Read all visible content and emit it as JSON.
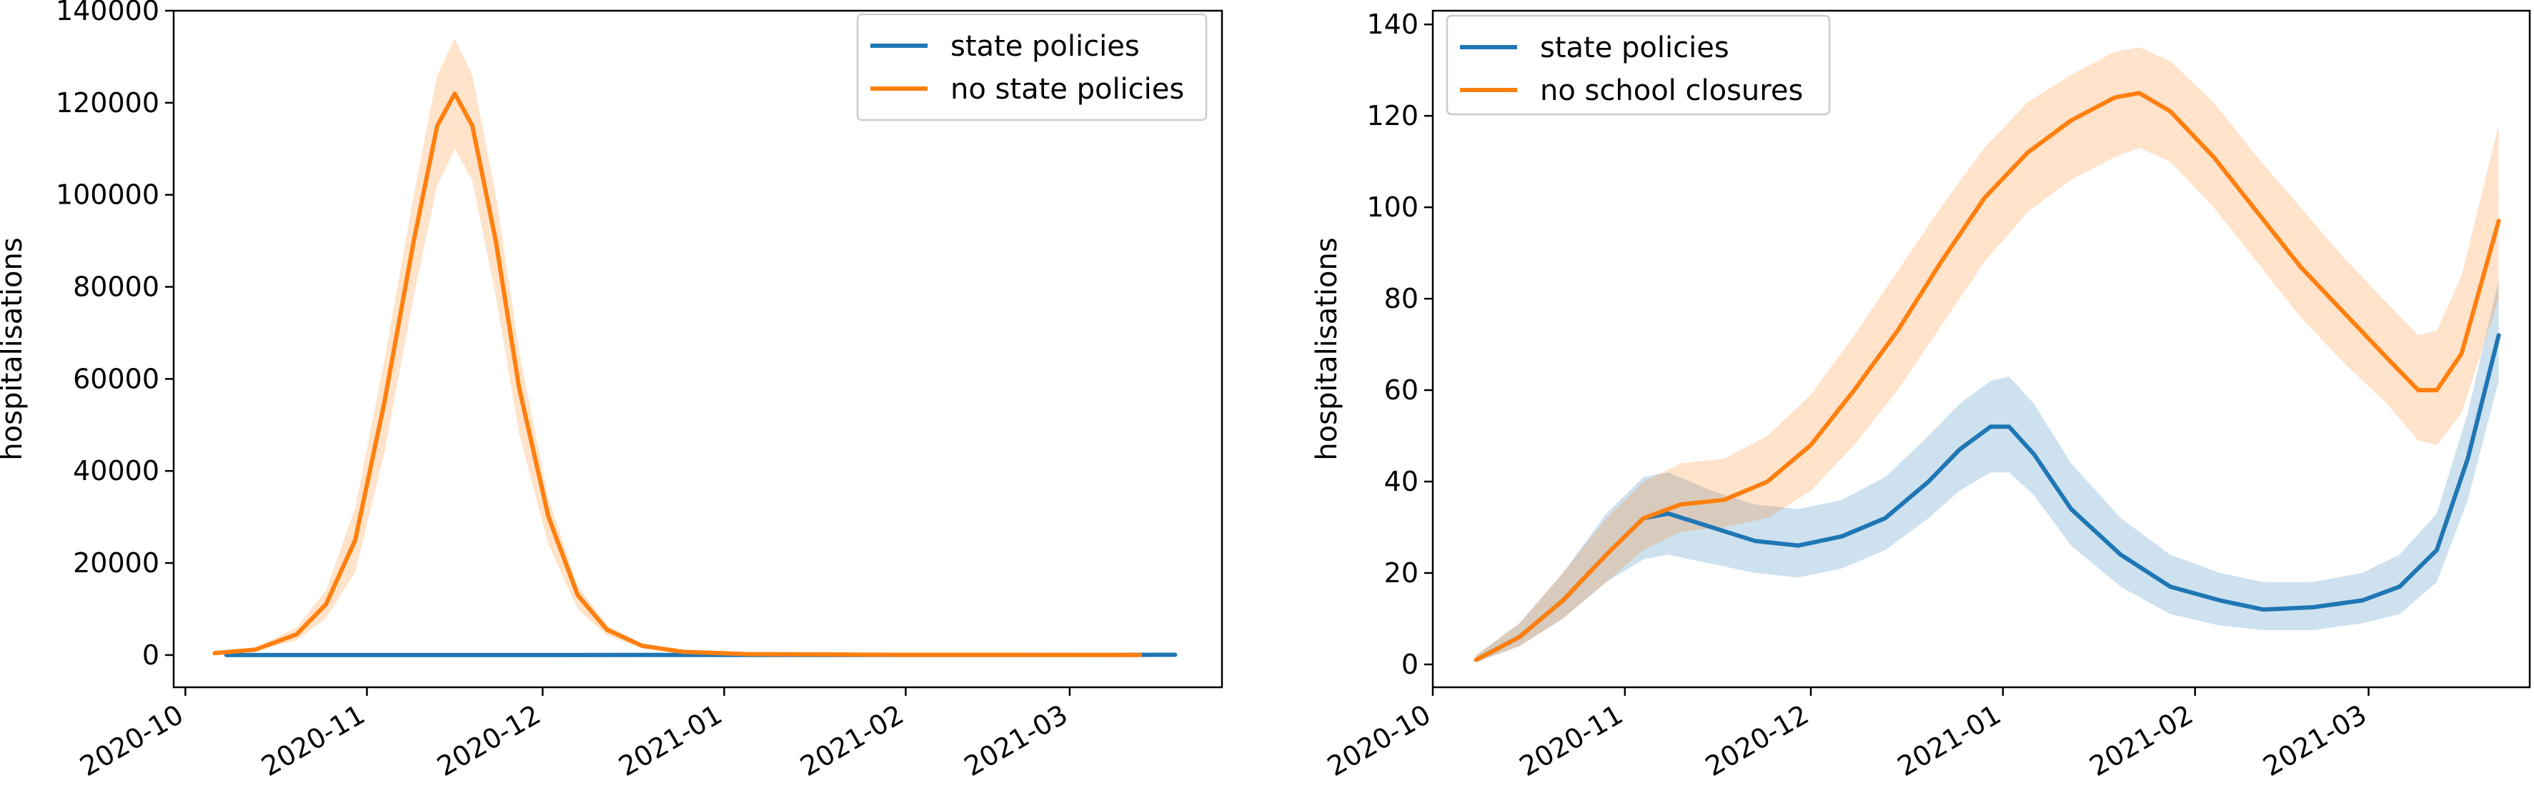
{
  "colors": {
    "blue": "#1f77b4",
    "orange": "#ff7f0e",
    "blue_band": "#aac9e4",
    "orange_band": "#ffd9b8"
  },
  "chart_data": [
    {
      "type": "line",
      "title": "",
      "xlabel": "",
      "ylabel": "hospitalisations",
      "x_ticks": [
        "2020-10",
        "2020-11",
        "2020-12",
        "2021-01",
        "2021-02",
        "2021-03"
      ],
      "ylim": [
        -7000,
        140000
      ],
      "y_ticks": [
        0,
        20000,
        40000,
        60000,
        80000,
        100000,
        120000,
        140000
      ],
      "legend": "top-right",
      "grid": false,
      "series": [
        {
          "name": "state policies",
          "color": "#1f77b4",
          "points": [
            [
              "2020-10-08",
              0
            ],
            [
              "2020-11-15",
              5
            ],
            [
              "2020-12-20",
              20
            ],
            [
              "2021-02-01",
              10
            ],
            [
              "2021-03-01",
              20
            ],
            [
              "2021-03-19",
              70
            ]
          ]
        },
        {
          "name": "no state policies",
          "color": "#ff7f0e",
          "points": [
            [
              "2020-10-06",
              400
            ],
            [
              "2020-10-13",
              1200
            ],
            [
              "2020-10-20",
              4500
            ],
            [
              "2020-10-25",
              11000
            ],
            [
              "2020-10-30",
              25000
            ],
            [
              "2020-11-04",
              55000
            ],
            [
              "2020-11-09",
              90000
            ],
            [
              "2020-11-13",
              115000
            ],
            [
              "2020-11-16",
              122000
            ],
            [
              "2020-11-19",
              115000
            ],
            [
              "2020-11-23",
              90000
            ],
            [
              "2020-11-27",
              58000
            ],
            [
              "2020-12-02",
              30000
            ],
            [
              "2020-12-07",
              13000
            ],
            [
              "2020-12-12",
              5500
            ],
            [
              "2020-12-18",
              2000
            ],
            [
              "2020-12-25",
              700
            ],
            [
              "2021-01-05",
              200
            ],
            [
              "2021-02-01",
              50
            ],
            [
              "2021-03-13",
              20
            ]
          ],
          "band_upper": [
            [
              "2020-10-06",
              600
            ],
            [
              "2020-10-13",
              1600
            ],
            [
              "2020-10-20",
              6000
            ],
            [
              "2020-10-25",
              14000
            ],
            [
              "2020-10-30",
              32000
            ],
            [
              "2020-11-04",
              64000
            ],
            [
              "2020-11-09",
              100000
            ],
            [
              "2020-11-13",
              126000
            ],
            [
              "2020-11-16",
              134000
            ],
            [
              "2020-11-19",
              126000
            ],
            [
              "2020-11-23",
              100000
            ],
            [
              "2020-11-27",
              66000
            ],
            [
              "2020-12-02",
              34000
            ],
            [
              "2020-12-07",
              15000
            ],
            [
              "2020-12-12",
              6500
            ],
            [
              "2020-12-18",
              2500
            ],
            [
              "2020-12-25",
              900
            ],
            [
              "2021-01-05",
              300
            ],
            [
              "2021-02-01",
              80
            ],
            [
              "2021-03-13",
              40
            ]
          ],
          "band_lower": [
            [
              "2020-10-06",
              250
            ],
            [
              "2020-10-13",
              900
            ],
            [
              "2020-10-20",
              3200
            ],
            [
              "2020-10-25",
              8000
            ],
            [
              "2020-10-30",
              18000
            ],
            [
              "2020-11-04",
              44000
            ],
            [
              "2020-11-09",
              78000
            ],
            [
              "2020-11-13",
              102000
            ],
            [
              "2020-11-16",
              110000
            ],
            [
              "2020-11-19",
              103000
            ],
            [
              "2020-11-23",
              78000
            ],
            [
              "2020-11-27",
              48000
            ],
            [
              "2020-12-02",
              24000
            ],
            [
              "2020-12-07",
              10000
            ],
            [
              "2020-12-12",
              4200
            ],
            [
              "2020-12-18",
              1500
            ],
            [
              "2020-12-25",
              500
            ],
            [
              "2021-01-05",
              120
            ],
            [
              "2021-02-01",
              20
            ],
            [
              "2021-03-13",
              5
            ]
          ]
        }
      ]
    },
    {
      "type": "line",
      "title": "",
      "xlabel": "",
      "ylabel": "hospitalisations",
      "x_ticks": [
        "2020-10",
        "2020-11",
        "2020-12",
        "2021-01",
        "2021-02",
        "2021-03"
      ],
      "ylim": [
        -5,
        143
      ],
      "y_ticks": [
        0,
        20,
        40,
        60,
        80,
        100,
        120,
        140
      ],
      "legend": "top-left",
      "grid": false,
      "series": [
        {
          "name": "state policies",
          "color": "#1f77b4",
          "points": [
            [
              "2020-10-08",
              1
            ],
            [
              "2020-10-15",
              6
            ],
            [
              "2020-10-22",
              14
            ],
            [
              "2020-10-29",
              24
            ],
            [
              "2020-11-04",
              32
            ],
            [
              "2020-11-08",
              33
            ],
            [
              "2020-11-15",
              30
            ],
            [
              "2020-11-22",
              27
            ],
            [
              "2020-11-29",
              26
            ],
            [
              "2020-12-06",
              28
            ],
            [
              "2020-12-13",
              32
            ],
            [
              "2020-12-20",
              40
            ],
            [
              "2020-12-25",
              47
            ],
            [
              "2020-12-30",
              52
            ],
            [
              "2021-01-02",
              52
            ],
            [
              "2021-01-06",
              46
            ],
            [
              "2021-01-12",
              34
            ],
            [
              "2021-01-20",
              24
            ],
            [
              "2021-01-28",
              17
            ],
            [
              "2021-02-05",
              14
            ],
            [
              "2021-02-12",
              12
            ],
            [
              "2021-02-20",
              12.5
            ],
            [
              "2021-02-28",
              14
            ],
            [
              "2021-03-06",
              17
            ],
            [
              "2021-03-12",
              25
            ],
            [
              "2021-03-17",
              45
            ],
            [
              "2021-03-22",
              72
            ]
          ],
          "band_upper": [
            [
              "2020-10-08",
              2
            ],
            [
              "2020-10-15",
              9
            ],
            [
              "2020-10-22",
              20
            ],
            [
              "2020-10-29",
              33
            ],
            [
              "2020-11-04",
              41
            ],
            [
              "2020-11-08",
              42
            ],
            [
              "2020-11-15",
              38
            ],
            [
              "2020-11-22",
              35
            ],
            [
              "2020-11-29",
              34
            ],
            [
              "2020-12-06",
              36
            ],
            [
              "2020-12-13",
              41
            ],
            [
              "2020-12-20",
              50
            ],
            [
              "2020-12-25",
              57
            ],
            [
              "2020-12-30",
              62
            ],
            [
              "2021-01-02",
              63
            ],
            [
              "2021-01-06",
              57
            ],
            [
              "2021-01-12",
              44
            ],
            [
              "2021-01-20",
              32
            ],
            [
              "2021-01-28",
              24
            ],
            [
              "2021-02-05",
              20
            ],
            [
              "2021-02-12",
              18
            ],
            [
              "2021-02-20",
              18
            ],
            [
              "2021-02-28",
              20
            ],
            [
              "2021-03-06",
              24
            ],
            [
              "2021-03-12",
              33
            ],
            [
              "2021-03-17",
              55
            ],
            [
              "2021-03-22",
              84
            ]
          ],
          "band_lower": [
            [
              "2020-10-08",
              0.5
            ],
            [
              "2020-10-15",
              4
            ],
            [
              "2020-10-22",
              10
            ],
            [
              "2020-10-29",
              18
            ],
            [
              "2020-11-04",
              23
            ],
            [
              "2020-11-08",
              24
            ],
            [
              "2020-11-15",
              22
            ],
            [
              "2020-11-22",
              20
            ],
            [
              "2020-11-29",
              19
            ],
            [
              "2020-12-06",
              21
            ],
            [
              "2020-12-13",
              25
            ],
            [
              "2020-12-20",
              32
            ],
            [
              "2020-12-25",
              38
            ],
            [
              "2020-12-30",
              42
            ],
            [
              "2021-01-02",
              42
            ],
            [
              "2021-01-06",
              37
            ],
            [
              "2021-01-12",
              26
            ],
            [
              "2021-01-20",
              17
            ],
            [
              "2021-01-28",
              11
            ],
            [
              "2021-02-05",
              8.5
            ],
            [
              "2021-02-12",
              7.5
            ],
            [
              "2021-02-20",
              7.5
            ],
            [
              "2021-02-28",
              9
            ],
            [
              "2021-03-06",
              11
            ],
            [
              "2021-03-12",
              18
            ],
            [
              "2021-03-17",
              36
            ],
            [
              "2021-03-22",
              62
            ]
          ]
        },
        {
          "name": "no school closures",
          "color": "#ff7f0e",
          "points": [
            [
              "2020-10-08",
              1
            ],
            [
              "2020-10-15",
              6
            ],
            [
              "2020-10-22",
              14
            ],
            [
              "2020-10-29",
              24
            ],
            [
              "2020-11-04",
              32
            ],
            [
              "2020-11-10",
              35
            ],
            [
              "2020-11-17",
              36
            ],
            [
              "2020-11-24",
              40
            ],
            [
              "2020-12-01",
              48
            ],
            [
              "2020-12-08",
              60
            ],
            [
              "2020-12-15",
              73
            ],
            [
              "2020-12-22",
              88
            ],
            [
              "2020-12-29",
              102
            ],
            [
              "2021-01-05",
              112
            ],
            [
              "2021-01-12",
              119
            ],
            [
              "2021-01-19",
              124
            ],
            [
              "2021-01-23",
              125
            ],
            [
              "2021-01-28",
              121
            ],
            [
              "2021-02-04",
              111
            ],
            [
              "2021-02-11",
              99
            ],
            [
              "2021-02-18",
              87
            ],
            [
              "2021-02-25",
              77
            ],
            [
              "2021-03-04",
              67
            ],
            [
              "2021-03-09",
              60
            ],
            [
              "2021-03-12",
              60
            ],
            [
              "2021-03-16",
              68
            ],
            [
              "2021-03-22",
              97
            ]
          ],
          "band_upper": [
            [
              "2020-10-08",
              2
            ],
            [
              "2020-10-15",
              9
            ],
            [
              "2020-10-22",
              20
            ],
            [
              "2020-10-29",
              32
            ],
            [
              "2020-11-04",
              40
            ],
            [
              "2020-11-10",
              44
            ],
            [
              "2020-11-17",
              45
            ],
            [
              "2020-11-24",
              50
            ],
            [
              "2020-12-01",
              59
            ],
            [
              "2020-12-08",
              72
            ],
            [
              "2020-12-15",
              86
            ],
            [
              "2020-12-22",
              100
            ],
            [
              "2020-12-29",
              113
            ],
            [
              "2021-01-05",
              123
            ],
            [
              "2021-01-12",
              129
            ],
            [
              "2021-01-19",
              134
            ],
            [
              "2021-01-23",
              135
            ],
            [
              "2021-01-28",
              132
            ],
            [
              "2021-02-04",
              123
            ],
            [
              "2021-02-11",
              111
            ],
            [
              "2021-02-18",
              100
            ],
            [
              "2021-02-25",
              89
            ],
            [
              "2021-03-04",
              79
            ],
            [
              "2021-03-09",
              72
            ],
            [
              "2021-03-12",
              73
            ],
            [
              "2021-03-16",
              85
            ],
            [
              "2021-03-22",
              118
            ]
          ],
          "band_lower": [
            [
              "2020-10-08",
              0.5
            ],
            [
              "2020-10-15",
              4
            ],
            [
              "2020-10-22",
              10
            ],
            [
              "2020-10-29",
              18
            ],
            [
              "2020-11-04",
              25
            ],
            [
              "2020-11-10",
              29
            ],
            [
              "2020-11-17",
              30
            ],
            [
              "2020-11-24",
              32
            ],
            [
              "2020-12-01",
              38
            ],
            [
              "2020-12-08",
              48
            ],
            [
              "2020-12-15",
              60
            ],
            [
              "2020-12-22",
              74
            ],
            [
              "2020-12-29",
              88
            ],
            [
              "2021-01-05",
              99
            ],
            [
              "2021-01-12",
              106
            ],
            [
              "2021-01-19",
              111
            ],
            [
              "2021-01-23",
              113
            ],
            [
              "2021-01-28",
              110
            ],
            [
              "2021-02-04",
              100
            ],
            [
              "2021-02-11",
              88
            ],
            [
              "2021-02-18",
              76
            ],
            [
              "2021-02-25",
              66
            ],
            [
              "2021-03-04",
              57
            ],
            [
              "2021-03-09",
              49
            ],
            [
              "2021-03-12",
              48
            ],
            [
              "2021-03-16",
              55
            ],
            [
              "2021-03-22",
              80
            ]
          ]
        }
      ]
    }
  ]
}
